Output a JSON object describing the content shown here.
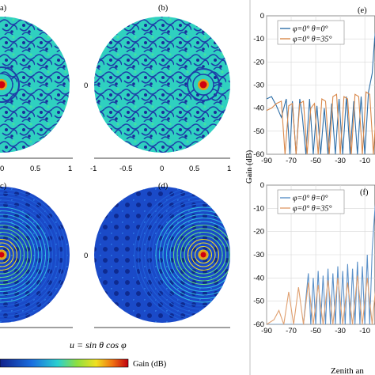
{
  "panels": {
    "a": {
      "label": "a)"
    },
    "b": {
      "label": "(b)"
    },
    "c": {
      "label": "c)"
    },
    "d": {
      "label": "(d)"
    },
    "e": {
      "label": "(e)"
    },
    "f": {
      "label": "(f)"
    }
  },
  "uv_axis": {
    "x_ticks_left": [
      "0",
      "0.5",
      "1"
    ],
    "x_ticks_right": [
      "-1",
      "-0.5",
      "0",
      "0.5",
      "1"
    ],
    "y_ticks_mid": [
      "0"
    ],
    "xlabel": "u = sin θ cos φ"
  },
  "colorbar": {
    "label": "Gain (dB)"
  },
  "chart_data": [
    {
      "type": "line",
      "panel": "e",
      "ylabel": "Gain (dB)",
      "xlim": [
        -90,
        90
      ],
      "ylim": [
        -60,
        0
      ],
      "x_ticks": [
        "-90",
        "-70",
        "-50",
        "-30",
        "-10"
      ],
      "y_ticks": [
        "0",
        "-10",
        "-20",
        "-30",
        "-40",
        "-50",
        "-60"
      ],
      "grid": true,
      "legend": "top-left",
      "series": [
        {
          "name": "φ=0° θ=0°",
          "color": "#2f6fa8",
          "peak_x": 0,
          "x": [
            -90,
            -86,
            -82,
            -78,
            -74,
            -71,
            -69,
            -66,
            -63,
            -61,
            -58,
            -55,
            -52,
            -49,
            -46,
            -43,
            -40,
            -37,
            -34,
            -31,
            -28,
            -25,
            -22,
            -19,
            -16,
            -13,
            -10,
            -7,
            -4,
            -2,
            0
          ],
          "y": [
            -36,
            -35,
            -39,
            -44,
            -36,
            -60,
            -37,
            -60,
            -36,
            -43,
            -60,
            -36,
            -60,
            -39,
            -60,
            -40,
            -60,
            -38,
            -60,
            -36,
            -60,
            -35,
            -60,
            -37,
            -60,
            -35,
            -60,
            -33,
            -25,
            -10,
            0
          ]
        },
        {
          "name": "φ=0° θ=35°",
          "color": "#d9884a",
          "peak_x": 35,
          "x": [
            -90,
            -86,
            -82,
            -78,
            -75,
            -72,
            -69,
            -66,
            -63,
            -60,
            -57,
            -54,
            -51,
            -48,
            -45,
            -42,
            -39,
            -36,
            -33,
            -30,
            -27,
            -24,
            -21,
            -18,
            -15,
            -12,
            -9,
            -6,
            -3,
            0
          ],
          "y": [
            -41,
            -40,
            -38,
            -37,
            -60,
            -39,
            -38,
            -60,
            -38,
            -37,
            -60,
            -40,
            -38,
            -60,
            -36,
            -37,
            -60,
            -35,
            -34,
            -60,
            -35,
            -36,
            -60,
            -34,
            -35,
            -60,
            -33,
            -34,
            -60,
            -35
          ]
        }
      ]
    },
    {
      "type": "line",
      "panel": "f",
      "ylabel": "Gain (dB)",
      "xlabel": "Zenith an",
      "xlim": [
        -90,
        90
      ],
      "ylim": [
        -60,
        0
      ],
      "x_ticks": [
        "-90",
        "-70",
        "-50",
        "-30",
        "-10"
      ],
      "y_ticks": [
        "0",
        "-10",
        "-20",
        "-30",
        "-40",
        "-50",
        "-60"
      ],
      "grid": true,
      "legend": "top-left",
      "series": [
        {
          "name": "φ=0° θ=0°",
          "color": "#5a90c8",
          "peak_x": 0,
          "x": [
            -90,
            -80,
            -60,
            -56,
            -54,
            -52,
            -50,
            -48,
            -46,
            -44,
            -42,
            -40,
            -38,
            -36,
            -34,
            -32,
            -30,
            -28,
            -26,
            -24,
            -22,
            -20,
            -18,
            -16,
            -14,
            -12,
            -10,
            -8,
            -6,
            -4,
            -2,
            0
          ],
          "y": [
            -60,
            -60,
            -60,
            -38,
            -60,
            -40,
            -60,
            -37,
            -60,
            -39,
            -60,
            -36,
            -60,
            -38,
            -60,
            -35,
            -60,
            -37,
            -60,
            -34,
            -60,
            -36,
            -60,
            -33,
            -60,
            -35,
            -60,
            -30,
            -60,
            -28,
            -12,
            0
          ]
        },
        {
          "name": "φ=0° θ=35°",
          "color": "#e0a070",
          "peak_x": 35,
          "x": [
            -90,
            -84,
            -80,
            -76,
            -72,
            -68,
            -64,
            -60,
            -56,
            -52,
            -48,
            -44,
            -40,
            -36,
            -32,
            -28,
            -24,
            -20,
            -16,
            -12,
            -8,
            -4,
            0
          ],
          "y": [
            -60,
            -58,
            -54,
            -60,
            -46,
            -60,
            -44,
            -60,
            -42,
            -60,
            -43,
            -60,
            -41,
            -60,
            -40,
            -60,
            -42,
            -60,
            -39,
            -60,
            -40,
            -60,
            -38
          ]
        }
      ]
    }
  ]
}
